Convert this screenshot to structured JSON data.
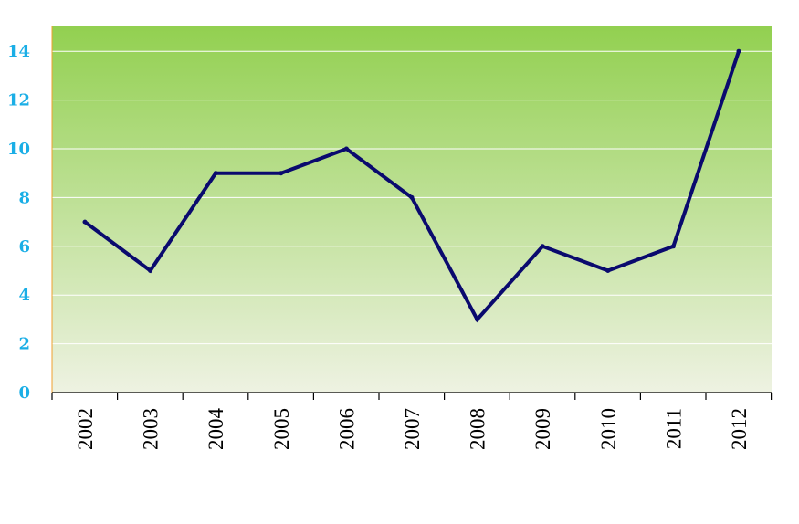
{
  "chart_data": {
    "type": "line",
    "categories": [
      "2002",
      "2003",
      "2004",
      "2005",
      "2006",
      "2007",
      "2008",
      "2009",
      "2010",
      "2011",
      "2012"
    ],
    "series": [
      {
        "values": [
          7,
          5,
          9,
          9,
          10,
          8,
          3,
          6,
          5,
          6,
          14
        ],
        "color": "#0a0a6e"
      }
    ],
    "title": "",
    "xlabel": "",
    "ylabel": "",
    "ylim": [
      0,
      15
    ],
    "yticks": [
      0,
      2,
      4,
      6,
      8,
      10,
      12,
      14
    ],
    "grid": true,
    "legend": "none",
    "colors": {
      "plot_gradient_top": "#92d050",
      "plot_gradient_bottom": "#eef2e2",
      "gridline": "#ffffff",
      "y_axis": "#f0a030",
      "x_axis": "#000000",
      "ytick_text": "#1aaee6",
      "xtick_text": "#000000"
    }
  }
}
